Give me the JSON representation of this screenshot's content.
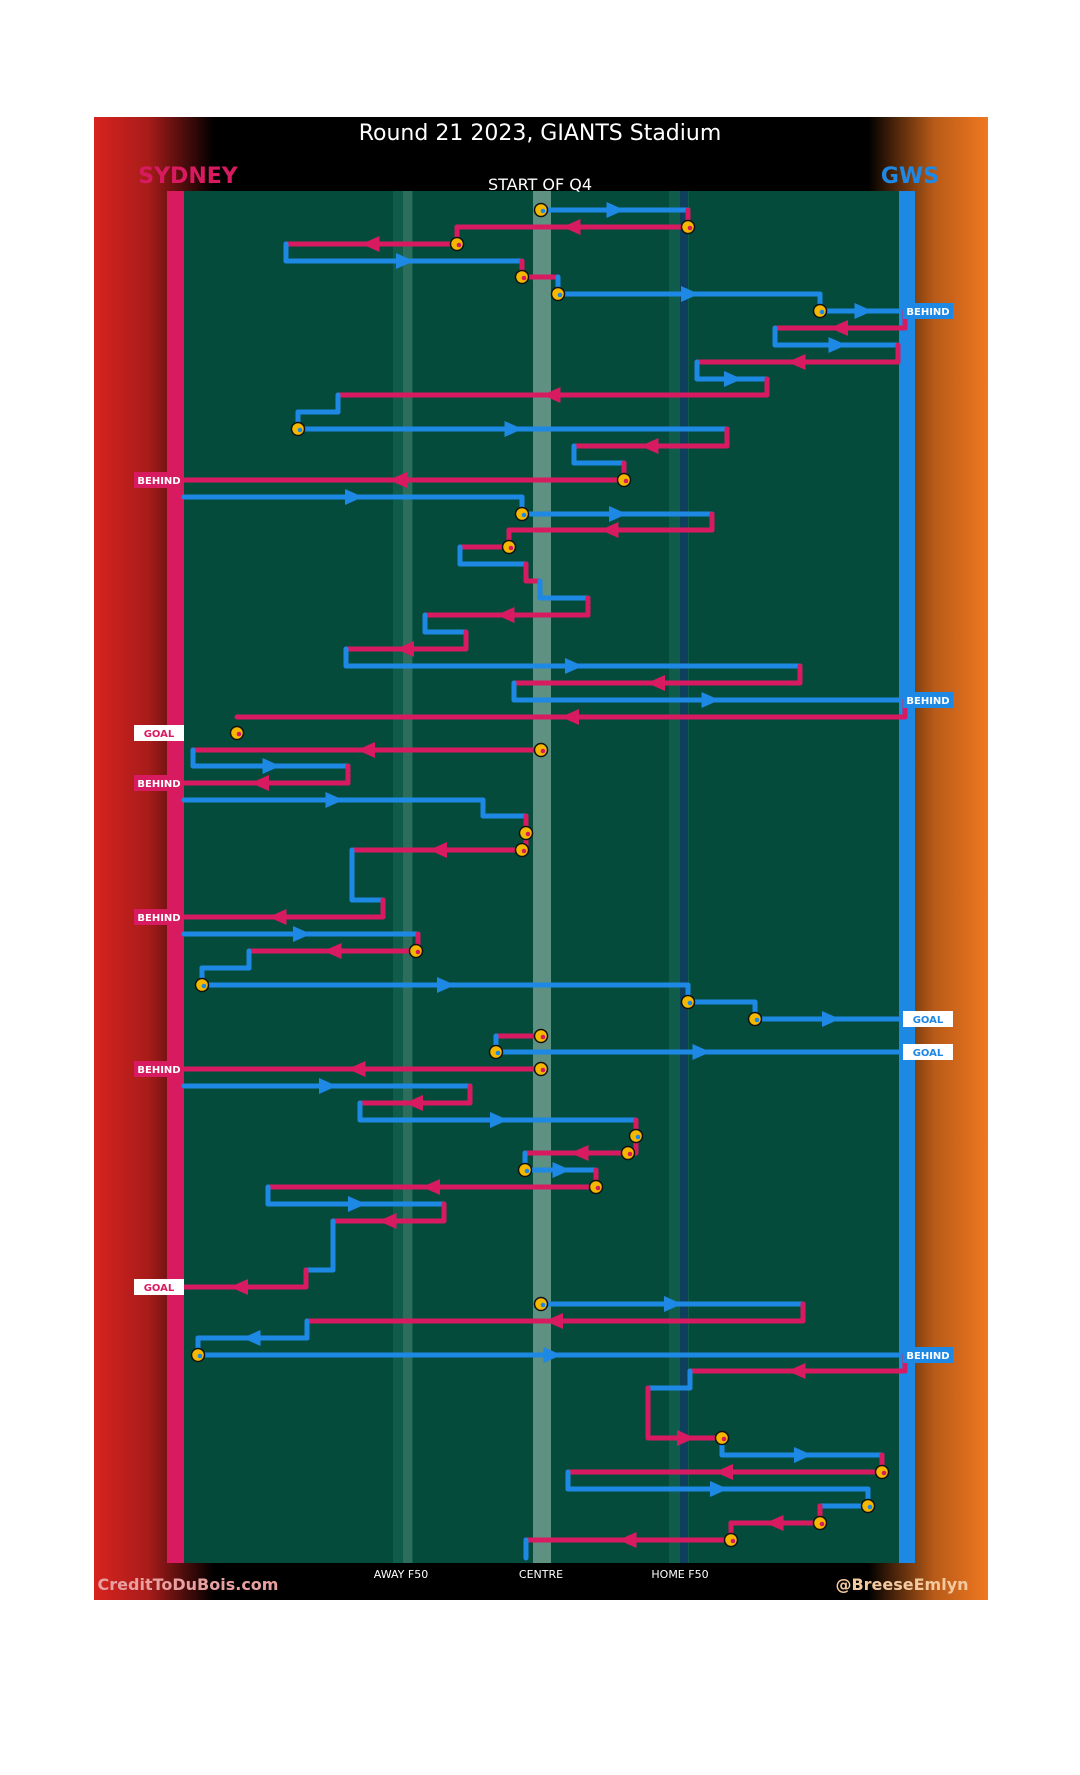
{
  "title": "Round 21 2023, GIANTS Stadium",
  "subtitle": "START OF Q4",
  "teams": {
    "left": {
      "name": "SYDNEY",
      "color": "#d81b60"
    },
    "right": {
      "name": "GWS",
      "color": "#1e88e5"
    }
  },
  "colors": {
    "field": "#044b3c",
    "ball_fill": "#f5b800",
    "left_gradient": "#d8231e",
    "right_gradient": "#f07820",
    "frame": "#000000"
  },
  "axis_labels": [
    "AWAY F50",
    "CENTRE",
    "HOME F50"
  ],
  "footer": {
    "left": "CreditToDuBois.com",
    "right": "@BreeseEmlyn"
  },
  "chart_data": {
    "type": "line",
    "title": "Round 21 2023, GIANTS Stadium",
    "subtitle": "START OF Q4",
    "x_axis": {
      "ticks": [
        "AWAY F50",
        "CENTRE",
        "HOME F50"
      ],
      "range": [
        "SYDNEY goal",
        "GWS goal"
      ]
    },
    "y_axis": {
      "direction": "time, top to bottom"
    },
    "series": [
      {
        "name": "SYDNEY",
        "color": "#d81b60"
      },
      {
        "name": "GWS",
        "color": "#1e88e5"
      }
    ],
    "outcomes": [
      {
        "team": "GWS",
        "result": "BEHIND"
      },
      {
        "team": "SYDNEY",
        "result": "BEHIND"
      },
      {
        "team": "GWS",
        "result": "BEHIND"
      },
      {
        "team": "SYDNEY",
        "result": "GOAL"
      },
      {
        "team": "SYDNEY",
        "result": "BEHIND"
      },
      {
        "team": "SYDNEY",
        "result": "BEHIND"
      },
      {
        "team": "GWS",
        "result": "GOAL"
      },
      {
        "team": "GWS",
        "result": "GOAL"
      },
      {
        "team": "SYDNEY",
        "result": "BEHIND"
      },
      {
        "team": "SYDNEY",
        "result": "GOAL"
      },
      {
        "team": "GWS",
        "result": "BEHIND"
      }
    ],
    "grid": false,
    "legend": "none"
  }
}
